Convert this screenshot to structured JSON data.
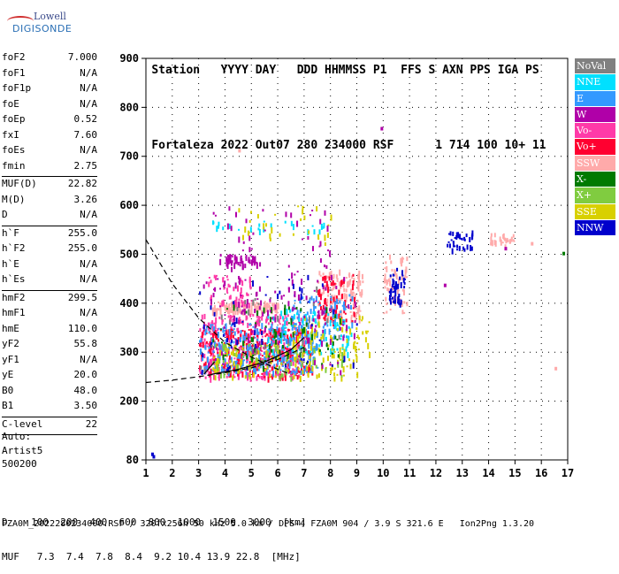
{
  "logo": {
    "line1": "Lowell",
    "line2": "DIGISONDE"
  },
  "header": {
    "row1": [
      "Station",
      "YYYY",
      "DAY",
      "DDD",
      "HHMMSS",
      "P1",
      "FFS",
      "S",
      "AXN",
      "PPS",
      "IGA",
      "PS"
    ],
    "row2": [
      "Fortaleza",
      "2022",
      "Out07",
      "280",
      "234000",
      "RSF",
      "",
      "1",
      "714",
      "100",
      "10+",
      "11"
    ]
  },
  "params": [
    {
      "k": "foF2",
      "v": "7.000"
    },
    {
      "k": "foF1",
      "v": "N/A"
    },
    {
      "k": "foF1p",
      "v": "N/A"
    },
    {
      "k": "foE",
      "v": "N/A"
    },
    {
      "k": "foEp",
      "v": "0.52"
    },
    {
      "k": "fxI",
      "v": "7.60"
    },
    {
      "k": "foEs",
      "v": "N/A"
    },
    {
      "k": "fmin",
      "v": "2.75"
    },
    {
      "sep": true
    },
    {
      "k": "MUF(D)",
      "v": "22.82"
    },
    {
      "k": "M(D)",
      "v": "3.26"
    },
    {
      "k": "D",
      "v": "N/A"
    },
    {
      "sep": true
    },
    {
      "k": "h`F",
      "v": "255.0"
    },
    {
      "k": "h`F2",
      "v": "255.0"
    },
    {
      "k": "h`E",
      "v": "N/A"
    },
    {
      "k": "h`Es",
      "v": "N/A"
    },
    {
      "sep": true
    },
    {
      "k": "hmF2",
      "v": "299.5"
    },
    {
      "k": "hmF1",
      "v": "N/A"
    },
    {
      "k": "hmE",
      "v": "110.0"
    },
    {
      "k": "yF2",
      "v": "55.8"
    },
    {
      "k": "yF1",
      "v": "N/A"
    },
    {
      "k": "yE",
      "v": "20.0"
    },
    {
      "k": "B0",
      "v": "48.0"
    },
    {
      "k": "B1",
      "v": "3.50"
    },
    {
      "sep": true
    },
    {
      "k": "C-level",
      "v": "22"
    },
    {
      "sep": true
    }
  ],
  "auto": [
    "Auto:",
    "Artist5",
    "500200"
  ],
  "bottom_table": {
    "D_label": "D",
    "D": [
      "100",
      "200",
      "400",
      "600",
      "800",
      "1000",
      "1500",
      "3000",
      "[km]"
    ],
    "MUF_label": "MUF",
    "MUF": [
      "7.3",
      "7.4",
      "7.8",
      "8.4",
      "9.2",
      "10.4",
      "13.9",
      "22.8",
      "[MHz]"
    ]
  },
  "footer": "FZA0M_2022280234000.RSF / 320fx256h 50 kHz 5.0 km / DPS-4 FZA0M 904 / 3.9 S 321.6 E   Ion2Png 1.3.20",
  "legend": [
    {
      "label": "NoVal",
      "color": "#808080"
    },
    {
      "label": "NNE",
      "color": "#00e0ff"
    },
    {
      "label": "E",
      "color": "#3399ff"
    },
    {
      "label": "W",
      "color": "#b000a8"
    },
    {
      "label": "Vo-",
      "color": "#ff3aa8"
    },
    {
      "label": "Vo+",
      "color": "#ff0030"
    },
    {
      "label": "SSW",
      "color": "#ffaaaa"
    },
    {
      "label": "X-",
      "color": "#007a00"
    },
    {
      "label": "X+",
      "color": "#80cc40"
    },
    {
      "label": "SSE",
      "color": "#d8d000"
    },
    {
      "label": "NNW",
      "color": "#0000cc"
    }
  ],
  "chart_data": {
    "type": "scatter",
    "xlim": [
      1,
      17
    ],
    "ylim": [
      80,
      900
    ],
    "x_ticks": [
      1,
      2,
      3,
      4,
      5,
      6,
      7,
      8,
      9,
      10,
      11,
      12,
      13,
      14,
      15,
      16,
      17
    ],
    "y_ticks": [
      80,
      200,
      300,
      400,
      500,
      600,
      700,
      800,
      900
    ],
    "grid": true,
    "legend_position": "right",
    "clusters": [
      {
        "series": "SSW",
        "x": [
          3.5,
          6.0
        ],
        "y": [
          385,
          405
        ],
        "n": 140
      },
      {
        "series": "SSW",
        "x": [
          7.5,
          9.2
        ],
        "y": [
          370,
          470
        ],
        "n": 120
      },
      {
        "series": "SSW",
        "x": [
          10.0,
          10.9
        ],
        "y": [
          380,
          500
        ],
        "n": 60
      },
      {
        "series": "SSW",
        "x": [
          14.0,
          15.0
        ],
        "y": [
          520,
          545
        ],
        "n": 25
      },
      {
        "series": "Vo-",
        "x": [
          3.0,
          7.0
        ],
        "y": [
          250,
          380
        ],
        "n": 380
      },
      {
        "series": "Vo-",
        "x": [
          3.3,
          5.0
        ],
        "y": [
          400,
          460
        ],
        "n": 50
      },
      {
        "series": "Vo+",
        "x": [
          3.0,
          7.3
        ],
        "y": [
          250,
          350
        ],
        "n": 260
      },
      {
        "series": "Vo+",
        "x": [
          7.5,
          9.0
        ],
        "y": [
          360,
          460
        ],
        "n": 70
      },
      {
        "series": "E",
        "x": [
          3.0,
          7.5
        ],
        "y": [
          260,
          360
        ],
        "n": 260
      },
      {
        "series": "E",
        "x": [
          6.5,
          8.8
        ],
        "y": [
          330,
          420
        ],
        "n": 90
      },
      {
        "series": "NNE",
        "x": [
          5.5,
          8.8
        ],
        "y": [
          300,
          390
        ],
        "n": 90
      },
      {
        "series": "NNE",
        "x": [
          3.5,
          8.0
        ],
        "y": [
          550,
          570
        ],
        "n": 25
      },
      {
        "series": "SSE",
        "x": [
          3.5,
          9.0
        ],
        "y": [
          250,
          320
        ],
        "n": 140
      },
      {
        "series": "SSE",
        "x": [
          6.5,
          9.5
        ],
        "y": [
          290,
          380
        ],
        "n": 70
      },
      {
        "series": "SSE",
        "x": [
          4.5,
          8.0
        ],
        "y": [
          520,
          600
        ],
        "n": 30
      },
      {
        "series": "X+",
        "x": [
          3.5,
          8.5
        ],
        "y": [
          250,
          320
        ],
        "n": 60
      },
      {
        "series": "X-",
        "x": [
          3.5,
          8.5
        ],
        "y": [
          270,
          400
        ],
        "n": 70
      },
      {
        "series": "W",
        "x": [
          4.0,
          5.2
        ],
        "y": [
          480,
          500
        ],
        "n": 45
      },
      {
        "series": "W",
        "x": [
          3.5,
          8.0
        ],
        "y": [
          380,
          600
        ],
        "n": 80
      },
      {
        "series": "W",
        "x": [
          3.0,
          9.0
        ],
        "y": [
          260,
          460
        ],
        "n": 90
      },
      {
        "series": "NNW",
        "x": [
          10.2,
          10.8
        ],
        "y": [
          400,
          480
        ],
        "n": 45
      },
      {
        "series": "NNW",
        "x": [
          12.4,
          13.4
        ],
        "y": [
          510,
          550
        ],
        "n": 35
      },
      {
        "series": "NNW",
        "x": [
          3.0,
          9.0
        ],
        "y": [
          260,
          460
        ],
        "n": 50
      },
      {
        "series": "NoVal",
        "x": [
          3.0,
          8.5
        ],
        "y": [
          260,
          440
        ],
        "n": 35
      }
    ],
    "points": [
      {
        "series": "NNW",
        "x": 1.2,
        "y": 95
      },
      {
        "series": "NNW",
        "x": 1.25,
        "y": 90
      },
      {
        "series": "W",
        "x": 9.9,
        "y": 760
      },
      {
        "series": "SSW",
        "x": 4.5,
        "y": 715
      },
      {
        "series": "SSW",
        "x": 16.5,
        "y": 270
      },
      {
        "series": "X-",
        "x": 16.8,
        "y": 505
      },
      {
        "series": "W",
        "x": 12.3,
        "y": 440
      },
      {
        "series": "W",
        "x": 14.6,
        "y": 515
      },
      {
        "series": "SSW",
        "x": 15.6,
        "y": 525
      }
    ],
    "curves": [
      {
        "style": "dashed",
        "x": [
          1,
          2,
          3,
          4,
          5,
          6,
          6.5
        ],
        "y": [
          530,
          440,
          370,
          320,
          290,
          265,
          255
        ]
      },
      {
        "style": "dashed",
        "x": [
          1,
          2,
          3,
          4,
          5,
          6,
          7
        ],
        "y": [
          238,
          243,
          250,
          258,
          268,
          285,
          310
        ]
      },
      {
        "style": "solid",
        "x": [
          3.5,
          4.5,
          5.5,
          6.5,
          7.0
        ],
        "y": [
          255,
          265,
          280,
          305,
          330
        ]
      },
      {
        "style": "solid",
        "x": [
          3.2,
          3.6
        ],
        "y": [
          255,
          280
        ]
      }
    ]
  }
}
